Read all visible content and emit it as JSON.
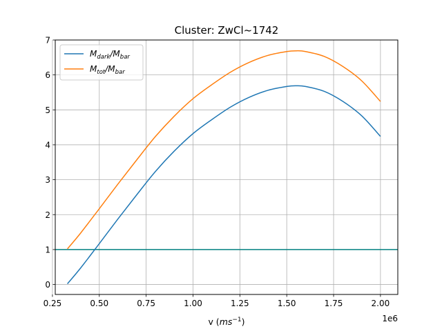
{
  "chart_data": {
    "type": "line",
    "title": "Cluster: ZwCl~1742",
    "xlabel": {
      "base": "v (",
      "unit": "ms",
      "unit_sup": "−1",
      "close": ")"
    },
    "ylabel": "",
    "x_offset_label": "1e6",
    "xlim": [
      0.265,
      2.0925
    ],
    "ylim": [
      -0.285,
      7.0
    ],
    "xticks": [
      0.25,
      0.5,
      0.75,
      1.0,
      1.25,
      1.5,
      1.75,
      2.0
    ],
    "xtick_labels": [
      "0.25",
      "0.50",
      "0.75",
      "1.00",
      "1.25",
      "1.50",
      "1.75",
      "2.00"
    ],
    "yticks": [
      0,
      1,
      2,
      3,
      4,
      5,
      6,
      7
    ],
    "ytick_labels": [
      "0",
      "1",
      "2",
      "3",
      "4",
      "5",
      "6",
      "7"
    ],
    "grid": true,
    "legend": {
      "placement": "top-left"
    },
    "series": [
      {
        "name_main": "M",
        "name_sub": "dark",
        "name_mid": "/M",
        "name_sub2": "bar",
        "color": "#1f77b4",
        "x": [
          0.33,
          0.4,
          0.5,
          0.6,
          0.7,
          0.8,
          0.9,
          1.0,
          1.1,
          1.2,
          1.3,
          1.4,
          1.5,
          1.55,
          1.6,
          1.7,
          1.8,
          1.9,
          2.0
        ],
        "y": [
          0.02,
          0.47,
          1.17,
          1.88,
          2.57,
          3.24,
          3.82,
          4.32,
          4.72,
          5.08,
          5.36,
          5.56,
          5.67,
          5.69,
          5.67,
          5.53,
          5.24,
          4.83,
          4.24
        ]
      },
      {
        "name_main": "M",
        "name_sub": "tot",
        "name_mid": "/M",
        "name_sub2": "bar",
        "color": "#ff7f0e",
        "x": [
          0.33,
          0.4,
          0.5,
          0.6,
          0.7,
          0.8,
          0.9,
          1.0,
          1.1,
          1.2,
          1.3,
          1.4,
          1.5,
          1.55,
          1.6,
          1.7,
          1.8,
          1.9,
          2.0
        ],
        "y": [
          1.02,
          1.47,
          2.17,
          2.88,
          3.57,
          4.24,
          4.82,
          5.32,
          5.72,
          6.08,
          6.36,
          6.56,
          6.67,
          6.69,
          6.67,
          6.53,
          6.24,
          5.83,
          5.24
        ]
      }
    ],
    "hlines": [
      {
        "y": 1,
        "color": "#008080"
      }
    ]
  }
}
